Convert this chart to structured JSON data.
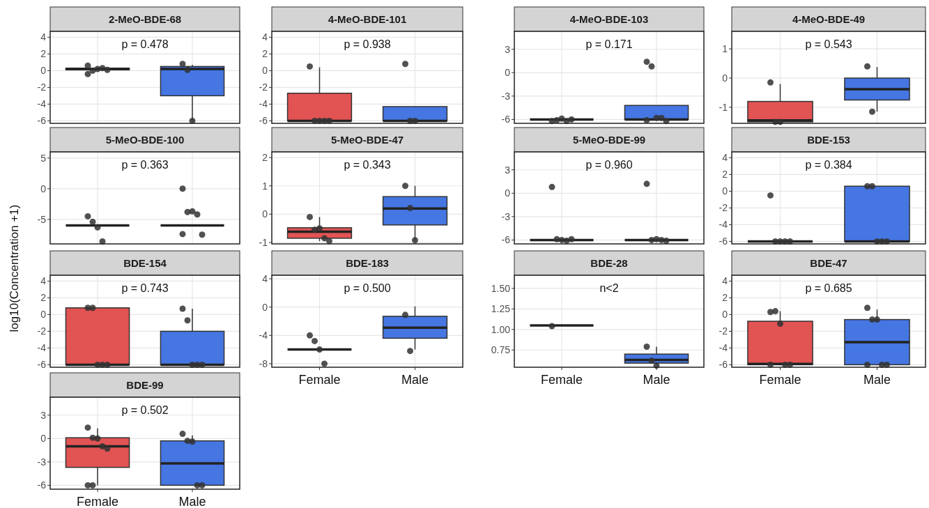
{
  "chart_data": [
    {
      "type": "box",
      "title": "2-MeO-BDE-68",
      "categories": [
        "Female",
        "Male"
      ],
      "colors": [
        "#e04a4a",
        "#3b6fe0"
      ],
      "boxes": [
        {
          "low": 0.1,
          "q1": 0.1,
          "median": 0.2,
          "q3": 0.3,
          "high": 0.3
        },
        {
          "low": -6,
          "q1": -3,
          "median": 0.2,
          "q3": 0.5,
          "high": 0.7
        }
      ],
      "series": [
        {
          "type": "scatter",
          "color": "#333333",
          "x": [
            "Female",
            "Female",
            "Female",
            "Female",
            "Female",
            "Female",
            "Male",
            "Male",
            "Male"
          ],
          "values": [
            -0.4,
            0.0,
            0.2,
            0.3,
            0.1,
            0.6,
            0.8,
            0.1,
            -6
          ]
        }
      ],
      "ylim": [
        -6.3,
        4.7
      ],
      "yticks": [
        -6,
        -4,
        -2,
        0,
        2,
        4
      ],
      "grid": true,
      "annotations": [
        "p = 0.478"
      ],
      "tick_labels": "y"
    },
    {
      "type": "box",
      "title": "4-MeO-BDE-101",
      "categories": [
        "Female",
        "Male"
      ],
      "colors": [
        "#e04a4a",
        "#3b6fe0"
      ],
      "boxes": [
        {
          "low": -6,
          "q1": -6,
          "median": -6,
          "q3": -2.7,
          "high": 0.4
        },
        {
          "low": -6,
          "q1": -6,
          "median": -6,
          "q3": -4.3,
          "high": -4.3
        }
      ],
      "series": [
        {
          "type": "scatter",
          "color": "#333333",
          "x": [
            "Female",
            "Female",
            "Female",
            "Female",
            "Female",
            "Male",
            "Male",
            "Male"
          ],
          "values": [
            0.5,
            -6,
            -6,
            -6,
            -6,
            0.8,
            -6,
            -6
          ]
        }
      ],
      "ylim": [
        -6.3,
        4.7
      ],
      "yticks": [
        -6,
        -4,
        -2,
        0,
        2,
        4
      ],
      "grid": true,
      "annotations": [
        "p = 0.938"
      ],
      "tick_labels": "y"
    },
    {
      "type": "box",
      "title": "4-MeO-BDE-103",
      "categories": [
        "Female",
        "Male"
      ],
      "colors": [
        "#222222",
        "#3b6fe0"
      ],
      "boxes": [
        {
          "low": -6,
          "q1": -6,
          "median": -6,
          "q3": -6,
          "high": -6
        },
        {
          "low": -6,
          "q1": -6,
          "median": -6,
          "q3": -4.2,
          "high": -4.2
        }
      ],
      "series": [
        {
          "type": "scatter",
          "color": "#333333",
          "x": [
            "Female",
            "Female",
            "Female",
            "Female",
            "Female",
            "Male",
            "Male",
            "Male",
            "Male",
            "Male",
            "Male"
          ],
          "values": [
            -6.2,
            -6.1,
            -5.9,
            -6.2,
            -6.0,
            1.4,
            0.8,
            -5.8,
            -5.8,
            -6.2,
            -6.1
          ]
        }
      ],
      "ylim": [
        -6.5,
        5.3
      ],
      "yticks": [
        -6,
        -3,
        0,
        3
      ],
      "grid": true,
      "annotations": [
        "p = 0.171"
      ],
      "tick_labels": "y"
    },
    {
      "type": "box",
      "title": "4-MeO-BDE-49",
      "categories": [
        "Female",
        "Male"
      ],
      "colors": [
        "#e04a4a",
        "#3b6fe0"
      ],
      "boxes": [
        {
          "low": -1.5,
          "q1": -1.5,
          "median": -1.45,
          "q3": -0.8,
          "high": -0.2
        },
        {
          "low": -1.15,
          "q1": -0.75,
          "median": -0.38,
          "q3": 0.0,
          "high": 0.38
        }
      ],
      "series": [
        {
          "type": "scatter",
          "color": "#333333",
          "x": [
            "Female",
            "Female",
            "Female",
            "Male",
            "Male"
          ],
          "values": [
            -0.15,
            -1.5,
            -1.5,
            0.4,
            -1.15
          ]
        }
      ],
      "ylim": [
        -1.55,
        1.6
      ],
      "yticks": [
        -1,
        0,
        1
      ],
      "grid": true,
      "annotations": [
        "p = 0.543"
      ],
      "tick_labels": "y"
    },
    {
      "type": "box",
      "title": "5-MeO-BDE-100",
      "ylabel": "log10(Concentration +1)",
      "categories": [
        "Female",
        "Male"
      ],
      "colors": [
        "#222222",
        "#222222"
      ],
      "boxes": [
        {
          "low": -6,
          "q1": -6,
          "median": -6,
          "q3": -6,
          "high": -6
        },
        {
          "low": -6,
          "q1": -6,
          "median": -6,
          "q3": -6,
          "high": -6
        }
      ],
      "series": [
        {
          "type": "scatter",
          "color": "#333333",
          "x": [
            "Female",
            "Female",
            "Female",
            "Female",
            "Male",
            "Male",
            "Male",
            "Male",
            "Male",
            "Male"
          ],
          "values": [
            -4.5,
            -5.4,
            -6.3,
            -8.6,
            0,
            -3.8,
            -3.7,
            -4.2,
            -7.5,
            -7.4
          ]
        }
      ],
      "ylim": [
        -9,
        6
      ],
      "yticks": [
        -5,
        0,
        5
      ],
      "grid": true,
      "annotations": [
        "p = 0.363"
      ],
      "tick_labels": "y"
    },
    {
      "type": "box",
      "title": "5-MeO-BDE-47",
      "categories": [
        "Female",
        "Male"
      ],
      "colors": [
        "#e04a4a",
        "#3b6fe0"
      ],
      "boxes": [
        {
          "low": -0.95,
          "q1": -0.85,
          "median": -0.62,
          "q3": -0.48,
          "high": -0.1
        },
        {
          "low": -0.92,
          "q1": -0.38,
          "median": 0.2,
          "q3": 0.62,
          "high": 1.0
        }
      ],
      "series": [
        {
          "type": "scatter",
          "color": "#333333",
          "x": [
            "Female",
            "Female",
            "Female",
            "Female",
            "Female",
            "Male",
            "Male",
            "Male"
          ],
          "values": [
            -0.1,
            -0.55,
            -0.5,
            -0.85,
            -0.95,
            1.0,
            0.22,
            -0.92
          ]
        }
      ],
      "ylim": [
        -1.05,
        2.2
      ],
      "yticks": [
        -1,
        0,
        1,
        2
      ],
      "grid": true,
      "annotations": [
        "p = 0.343"
      ],
      "tick_labels": "y"
    },
    {
      "type": "box",
      "title": "5-MeO-BDE-99",
      "categories": [
        "Female",
        "Male"
      ],
      "colors": [
        "#222222",
        "#222222"
      ],
      "boxes": [
        {
          "low": -6,
          "q1": -6,
          "median": -6,
          "q3": -6,
          "high": -6
        },
        {
          "low": -6,
          "q1": -6,
          "median": -6,
          "q3": -6,
          "high": -6
        }
      ],
      "series": [
        {
          "type": "scatter",
          "color": "#333333",
          "x": [
            "Female",
            "Female",
            "Female",
            "Female",
            "Female",
            "Male",
            "Male",
            "Male",
            "Male",
            "Male"
          ],
          "values": [
            0.8,
            -5.9,
            -6.0,
            -6.1,
            -5.9,
            1.2,
            -6.0,
            -5.9,
            -6.0,
            -6.1
          ]
        }
      ],
      "ylim": [
        -6.5,
        5.3
      ],
      "yticks": [
        -6,
        -3,
        0,
        3
      ],
      "grid": true,
      "annotations": [
        "p = 0.960"
      ],
      "tick_labels": "y"
    },
    {
      "type": "box",
      "title": "BDE-153",
      "categories": [
        "Female",
        "Male"
      ],
      "colors": [
        "#222222",
        "#3b6fe0"
      ],
      "boxes": [
        {
          "low": -6,
          "q1": -6,
          "median": -6,
          "q3": -6,
          "high": -6
        },
        {
          "low": -6,
          "q1": -6,
          "median": -6,
          "q3": 0.6,
          "high": 0.6
        }
      ],
      "series": [
        {
          "type": "scatter",
          "color": "#333333",
          "x": [
            "Female",
            "Female",
            "Female",
            "Female",
            "Female",
            "Male",
            "Male",
            "Male",
            "Male",
            "Male"
          ],
          "values": [
            -0.5,
            -6,
            -6,
            -6,
            -6,
            0.6,
            0.6,
            -6,
            -6,
            -6
          ]
        }
      ],
      "ylim": [
        -6.3,
        4.7
      ],
      "yticks": [
        -6,
        -4,
        -2,
        0,
        2,
        4
      ],
      "grid": true,
      "annotations": [
        "p = 0.384"
      ],
      "tick_labels": "y"
    },
    {
      "type": "box",
      "title": "BDE-154",
      "categories": [
        "Female",
        "Male"
      ],
      "colors": [
        "#e04a4a",
        "#3b6fe0"
      ],
      "boxes": [
        {
          "low": -6,
          "q1": -6,
          "median": -6,
          "q3": 0.8,
          "high": 0.8
        },
        {
          "low": -6,
          "q1": -6,
          "median": -6,
          "q3": -2,
          "high": 0.7
        }
      ],
      "series": [
        {
          "type": "scatter",
          "color": "#333333",
          "x": [
            "Female",
            "Female",
            "Female",
            "Female",
            "Female",
            "Male",
            "Male",
            "Male",
            "Male",
            "Male"
          ],
          "values": [
            0.8,
            0.8,
            -6,
            -6,
            -6,
            0.7,
            -0.7,
            -6,
            -6,
            -6
          ]
        }
      ],
      "ylim": [
        -6.3,
        4.7
      ],
      "yticks": [
        -6,
        -4,
        -2,
        0,
        2,
        4
      ],
      "grid": true,
      "annotations": [
        "p = 0.743"
      ],
      "tick_labels": "y"
    },
    {
      "type": "box",
      "title": "BDE-183",
      "categories": [
        "Female",
        "Male"
      ],
      "colors": [
        "#222222",
        "#3b6fe0"
      ],
      "boxes": [
        {
          "low": -6,
          "q1": -6,
          "median": -6,
          "q3": -6,
          "high": -6
        },
        {
          "low": -6,
          "q1": -4.4,
          "median": -2.9,
          "q3": -1.3,
          "high": 0.1
        }
      ],
      "series": [
        {
          "type": "scatter",
          "color": "#333333",
          "x": [
            "Female",
            "Female",
            "Female",
            "Female",
            "Male",
            "Male"
          ],
          "values": [
            -4,
            -4.8,
            -6,
            -8,
            -1.1,
            -6.2
          ]
        }
      ],
      "ylim": [
        -8.5,
        4.5
      ],
      "yticks": [
        -8,
        -4,
        0,
        4
      ],
      "grid": true,
      "annotations": [
        "p = 0.500"
      ]
    },
    {
      "type": "box",
      "title": "BDE-28",
      "categories": [
        "Female",
        "Male"
      ],
      "colors": [
        "#222222",
        "#3b6fe0"
      ],
      "boxes": [
        {
          "low": 1.05,
          "q1": 1.05,
          "median": 1.05,
          "q3": 1.05,
          "high": 1.05
        },
        {
          "low": 0.57,
          "q1": 0.59,
          "median": 0.63,
          "q3": 0.7,
          "high": 0.79
        }
      ],
      "series": [
        {
          "type": "scatter",
          "color": "#333333",
          "x": [
            "Female",
            "Male",
            "Male",
            "Male"
          ],
          "values": [
            1.04,
            0.79,
            0.62,
            0.56
          ]
        }
      ],
      "ylim": [
        0.54,
        1.66
      ],
      "yticks": [
        {
          "value": 0.75,
          "label": "0.75"
        },
        {
          "value": 1,
          "label": "1.00"
        },
        {
          "value": 1.25,
          "label": "1.25"
        },
        {
          "value": 1.5,
          "label": "1.50"
        }
      ],
      "grid": true,
      "annotations": [
        "n<2"
      ]
    },
    {
      "type": "box",
      "title": "BDE-47",
      "categories": [
        "Female",
        "Male"
      ],
      "colors": [
        "#e04a4a",
        "#3b6fe0"
      ],
      "boxes": [
        {
          "low": -6,
          "q1": -6,
          "median": -5.9,
          "q3": -0.8,
          "high": 0.4
        },
        {
          "low": -6,
          "q1": -6,
          "median": -3.3,
          "q3": -0.6,
          "high": 0.6
        }
      ],
      "series": [
        {
          "type": "scatter",
          "color": "#333333",
          "x": [
            "Female",
            "Female",
            "Female",
            "Female",
            "Female",
            "Female",
            "Male",
            "Male",
            "Male",
            "Male",
            "Male",
            "Male"
          ],
          "values": [
            0.3,
            0.4,
            -1.1,
            -6,
            -6,
            -6,
            0.8,
            -0.6,
            -0.6,
            -6,
            -6,
            -6
          ]
        }
      ],
      "ylim": [
        -6.3,
        4.7
      ],
      "yticks": [
        -6,
        -4,
        -2,
        0,
        2,
        4
      ],
      "grid": true,
      "annotations": [
        "p = 0.685"
      ]
    },
    {
      "type": "box",
      "title": "BDE-99",
      "categories": [
        "Female",
        "Male"
      ],
      "colors": [
        "#e04a4a",
        "#3b6fe0"
      ],
      "boxes": [
        {
          "low": -6,
          "q1": -3.7,
          "median": -1.0,
          "q3": 0.1,
          "high": 1.3
        },
        {
          "low": -6,
          "q1": -6,
          "median": -3.2,
          "q3": -0.3,
          "high": 0.4
        }
      ],
      "series": [
        {
          "type": "scatter",
          "color": "#333333",
          "x": [
            "Female",
            "Female",
            "Female",
            "Female",
            "Female",
            "Female",
            "Female",
            "Male",
            "Male",
            "Male",
            "Male",
            "Male"
          ],
          "values": [
            1.4,
            0.1,
            0.0,
            -1.0,
            -1.3,
            -6,
            -6,
            0.6,
            -0.3,
            -0.4,
            -6,
            -6
          ]
        }
      ],
      "ylim": [
        -6.5,
        5.3
      ],
      "yticks": [
        -6,
        -3,
        0,
        3
      ],
      "grid": true,
      "annotations": [
        "p = 0.502"
      ]
    }
  ]
}
